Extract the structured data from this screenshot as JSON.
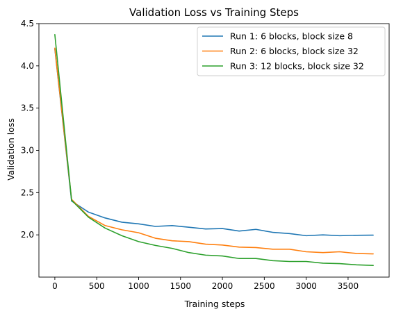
{
  "chart_data": {
    "type": "line",
    "title": "Validation Loss vs Training Steps",
    "xlabel": "Training steps",
    "ylabel": "Validation loss",
    "xlim": [
      -190,
      3990
    ],
    "ylim": [
      1.5,
      4.5
    ],
    "xticks": [
      0,
      500,
      1000,
      1500,
      2000,
      2500,
      3000,
      3500
    ],
    "yticks": [
      2.0,
      2.5,
      3.0,
      3.5,
      4.0,
      4.5
    ],
    "ytick_labels": [
      "2.0",
      "2.5",
      "3.0",
      "3.5",
      "4.0",
      "4.5"
    ],
    "grid": false,
    "legend_position": "top-right",
    "x": [
      0,
      200,
      400,
      600,
      800,
      1000,
      1200,
      1400,
      1600,
      1800,
      2000,
      2200,
      2400,
      2600,
      2800,
      3000,
      3200,
      3400,
      3600,
      3800
    ],
    "series": [
      {
        "name": "Run 1: 6 blocks, block size 8",
        "color": "#1f77b4",
        "values": [
          4.2,
          2.4,
          2.27,
          2.2,
          2.15,
          2.13,
          2.1,
          2.11,
          2.09,
          2.07,
          2.075,
          2.045,
          2.065,
          2.03,
          2.015,
          1.99,
          2.0,
          1.99,
          1.995,
          1.997
        ]
      },
      {
        "name": "Run 2: 6 blocks, block size 32",
        "color": "#ff7f0e",
        "values": [
          4.21,
          2.42,
          2.22,
          2.11,
          2.06,
          2.025,
          1.96,
          1.93,
          1.92,
          1.89,
          1.88,
          1.855,
          1.85,
          1.83,
          1.83,
          1.8,
          1.79,
          1.8,
          1.78,
          1.775
        ]
      },
      {
        "name": "Run 3: 12 blocks, block size 32",
        "color": "#2ca02c",
        "values": [
          4.37,
          2.41,
          2.21,
          2.08,
          1.99,
          1.92,
          1.875,
          1.84,
          1.79,
          1.76,
          1.75,
          1.72,
          1.72,
          1.695,
          1.685,
          1.685,
          1.665,
          1.66,
          1.645,
          1.638
        ]
      }
    ]
  }
}
